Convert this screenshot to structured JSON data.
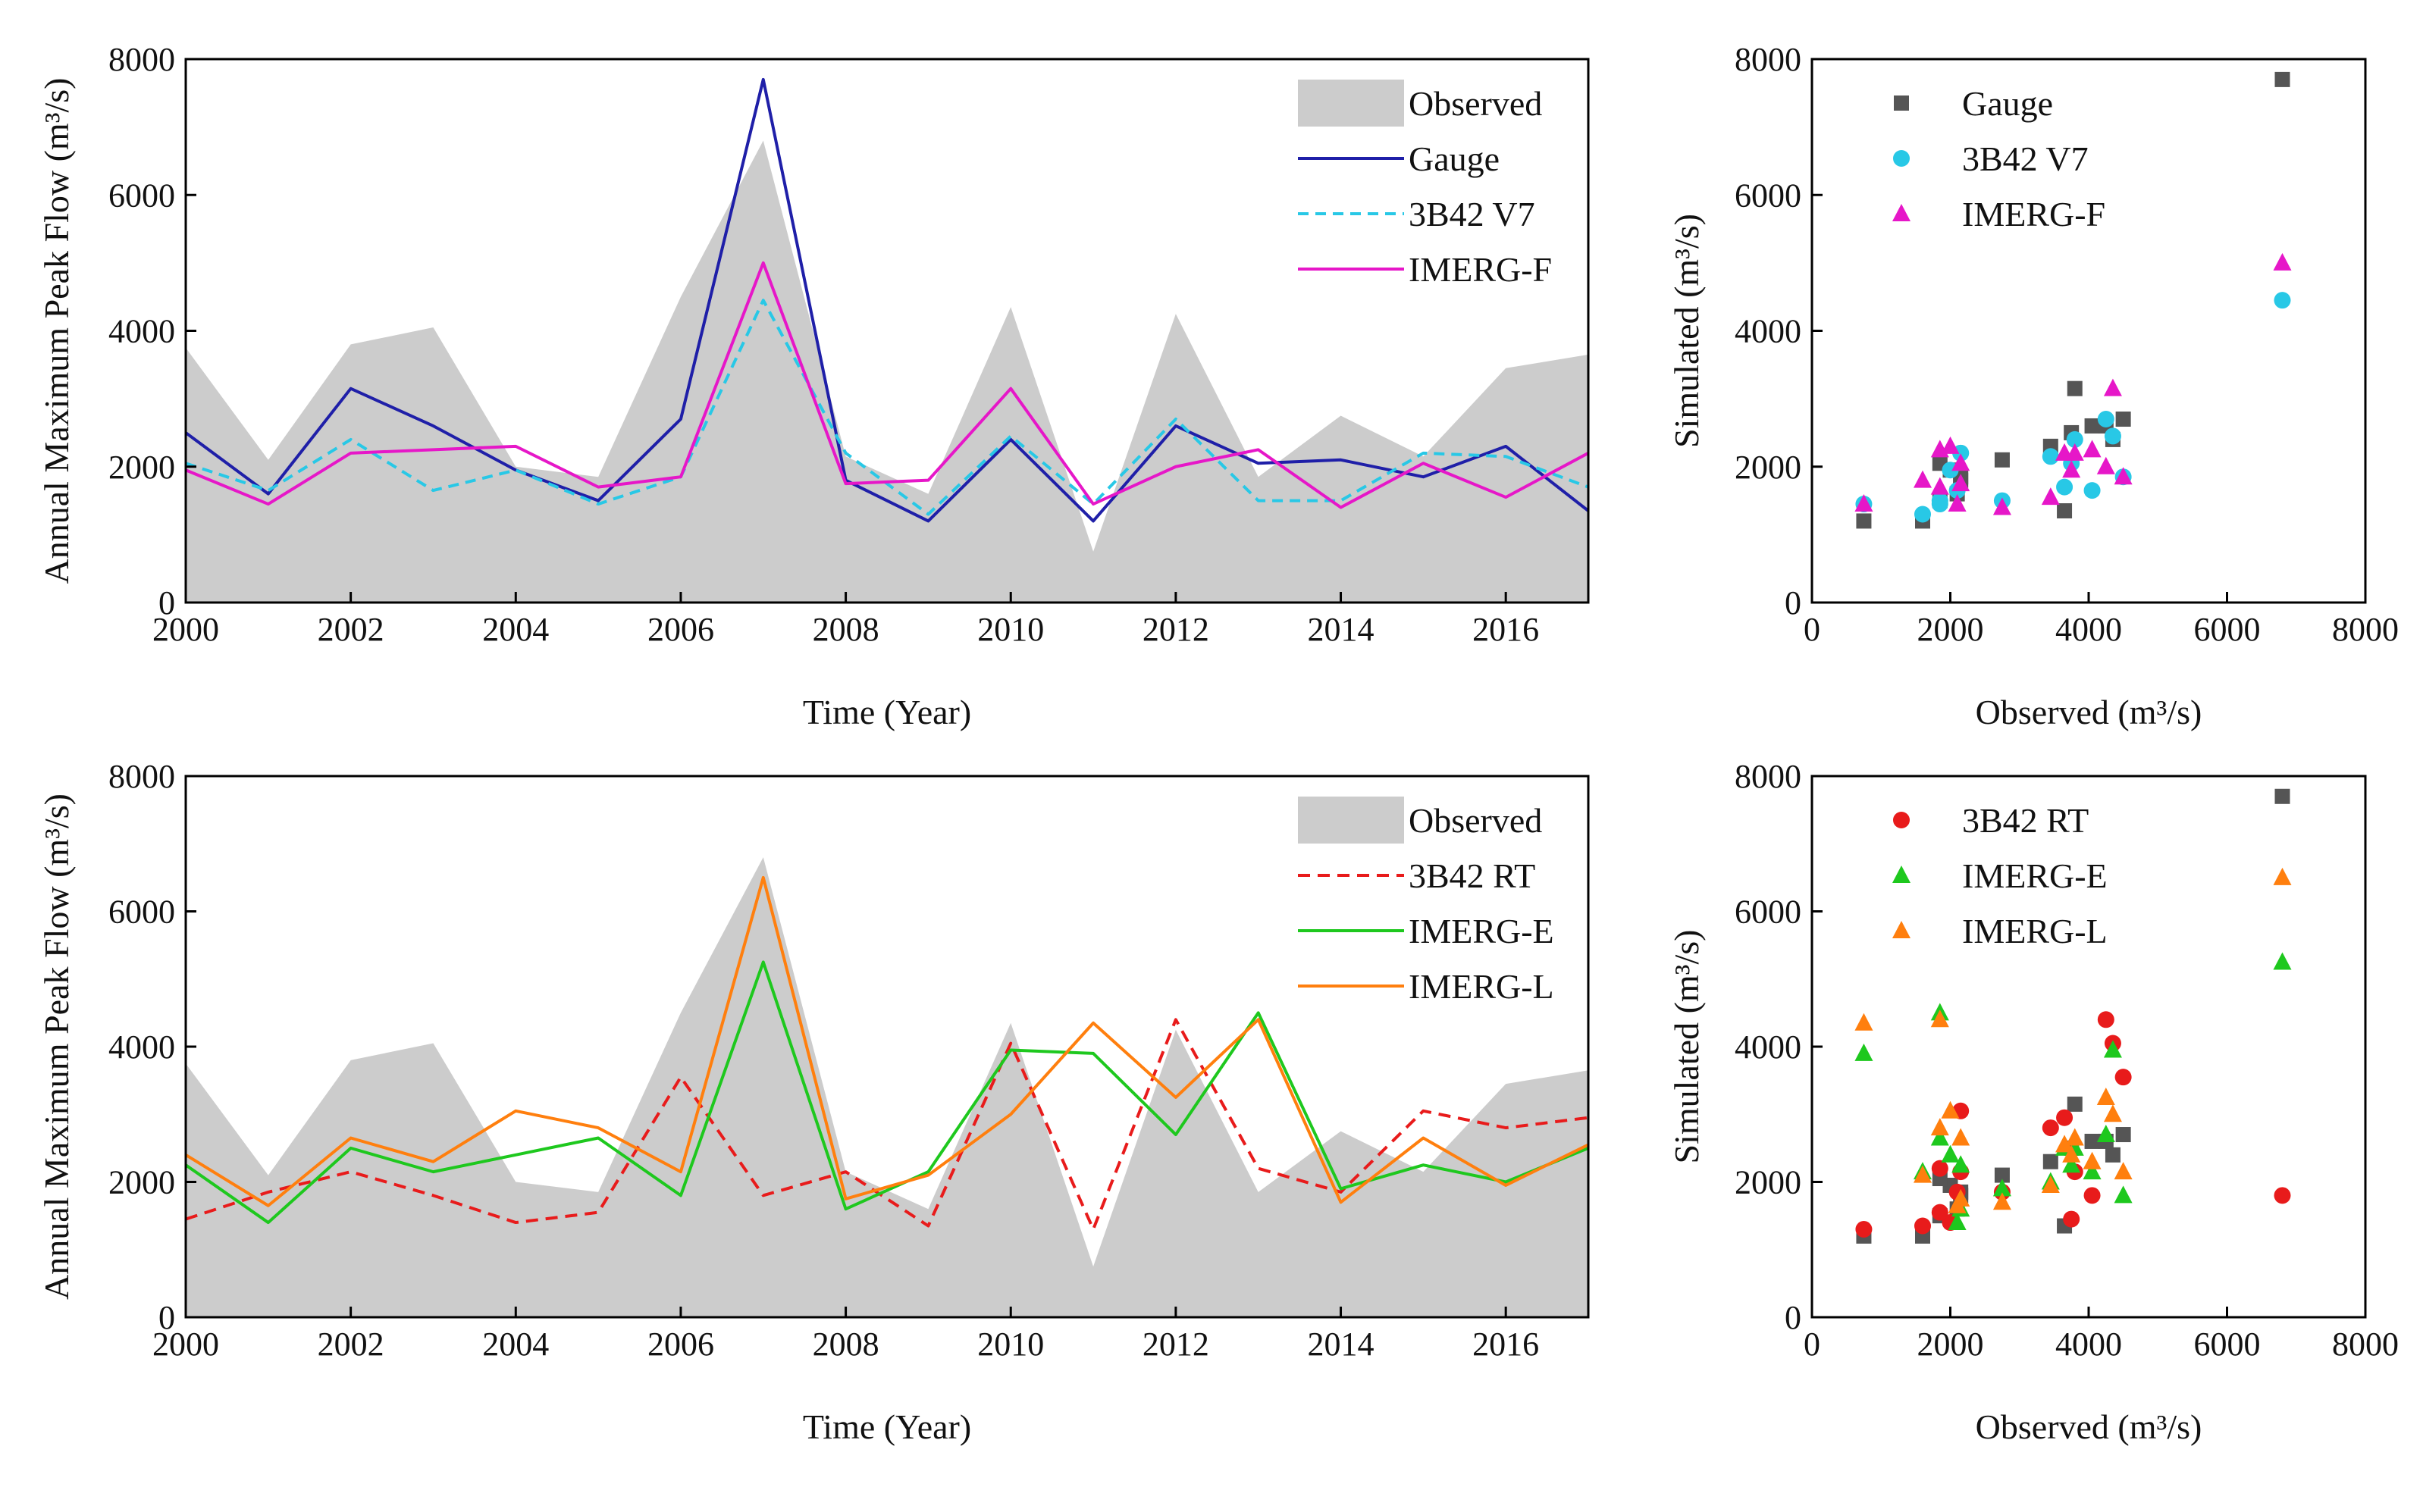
{
  "chart_data": [
    {
      "id": "ts_top",
      "type": "line",
      "title": "",
      "xlabel": "Time (Year)",
      "ylabel": "Annual Maximum Peak Flow (m³/s)",
      "xlim": [
        2000,
        2017
      ],
      "ylim": [
        0,
        8000
      ],
      "xticks": [
        2000,
        2002,
        2004,
        2006,
        2008,
        2010,
        2012,
        2014,
        2016
      ],
      "yticks": [
        0,
        2000,
        4000,
        6000,
        8000
      ],
      "legend_position": "top-right",
      "x": [
        2000,
        2001,
        2002,
        2003,
        2004,
        2005,
        2006,
        2007,
        2008,
        2009,
        2010,
        2011,
        2012,
        2013,
        2014,
        2015,
        2016,
        2017
      ],
      "observed": {
        "name": "Observed",
        "color": "#cccccc",
        "values": [
          3750,
          2100,
          3800,
          4050,
          2000,
          1850,
          4500,
          6800,
          2150,
          1600,
          4350,
          750,
          4250,
          1850,
          2750,
          2150,
          3450,
          3650
        ]
      },
      "series": [
        {
          "name": "Gauge",
          "color": "#1f1fa8",
          "dash": "",
          "values": [
            2500,
            1600,
            3150,
            2600,
            1950,
            1500,
            2700,
            7700,
            1800,
            1200,
            2400,
            1200,
            2600,
            2050,
            2100,
            1850,
            2300,
            1350
          ]
        },
        {
          "name": "3B42 V7",
          "color": "#28c8e6",
          "dash": "14 9",
          "values": [
            2050,
            1650,
            2400,
            1650,
            1950,
            1450,
            1850,
            4450,
            2200,
            1300,
            2450,
            1450,
            2700,
            1500,
            1500,
            2200,
            2150,
            1700
          ]
        },
        {
          "name": "IMERG-F",
          "color": "#e617c8",
          "dash": "",
          "values": [
            1950,
            1450,
            2200,
            2250,
            2300,
            1700,
            1850,
            5000,
            1750,
            1800,
            3150,
            1450,
            2000,
            2250,
            1400,
            2050,
            1550,
            2200
          ]
        }
      ]
    },
    {
      "id": "scatter_top",
      "type": "scatter",
      "title": "",
      "xlabel": "Observed (m³/s)",
      "ylabel": "Simulated (m³/s)",
      "xlim": [
        0,
        8000
      ],
      "ylim": [
        0,
        8000
      ],
      "xticks": [
        0,
        2000,
        4000,
        6000,
        8000
      ],
      "yticks": [
        0,
        2000,
        4000,
        6000,
        8000
      ],
      "legend_position": "top-left",
      "observed_x": [
        3750,
        2100,
        3800,
        4050,
        2000,
        1850,
        4500,
        6800,
        2150,
        1600,
        4350,
        750,
        4250,
        1850,
        2750,
        2150,
        3450,
        3650
      ],
      "series": [
        {
          "name": "Gauge",
          "color": "#555555",
          "marker": "square",
          "values": [
            2500,
            1600,
            3150,
            2600,
            1950,
            1500,
            2700,
            7700,
            1800,
            1200,
            2400,
            1200,
            2600,
            2050,
            2100,
            1850,
            2300,
            1350
          ]
        },
        {
          "name": "3B42 V7",
          "color": "#28c8e6",
          "marker": "circle",
          "values": [
            2050,
            1650,
            2400,
            1650,
            1950,
            1450,
            1850,
            4450,
            2200,
            1300,
            2450,
            1450,
            2700,
            1500,
            1500,
            2200,
            2150,
            1700
          ]
        },
        {
          "name": "IMERG-F",
          "color": "#e617c8",
          "marker": "triangle",
          "values": [
            1950,
            1450,
            2200,
            2250,
            2300,
            1700,
            1850,
            5000,
            1750,
            1800,
            3150,
            1450,
            2000,
            2250,
            1400,
            2050,
            1550,
            2200
          ]
        }
      ]
    },
    {
      "id": "ts_bottom",
      "type": "line",
      "title": "",
      "xlabel": "Time (Year)",
      "ylabel": "Annual Maximum Peak Flow (m³/s)",
      "xlim": [
        2000,
        2017
      ],
      "ylim": [
        0,
        8000
      ],
      "xticks": [
        2000,
        2002,
        2004,
        2006,
        2008,
        2010,
        2012,
        2014,
        2016
      ],
      "yticks": [
        0,
        2000,
        4000,
        6000,
        8000
      ],
      "legend_position": "top-right",
      "x": [
        2000,
        2001,
        2002,
        2003,
        2004,
        2005,
        2006,
        2007,
        2008,
        2009,
        2010,
        2011,
        2012,
        2013,
        2014,
        2015,
        2016,
        2017
      ],
      "observed": {
        "name": "Observed",
        "color": "#cccccc",
        "values": [
          3750,
          2100,
          3800,
          4050,
          2000,
          1850,
          4500,
          6800,
          2150,
          1600,
          4350,
          750,
          4250,
          1850,
          2750,
          2150,
          3450,
          3650
        ]
      },
      "series": [
        {
          "name": "3B42 RT",
          "color": "#e81b1b",
          "dash": "16 10",
          "values": [
            1450,
            1850,
            2150,
            1800,
            1400,
            1550,
            3550,
            1800,
            2150,
            1350,
            4050,
            1300,
            4400,
            2200,
            1850,
            3050,
            2800,
            2950
          ]
        },
        {
          "name": "IMERG-E",
          "color": "#1ec81e",
          "dash": "",
          "values": [
            2250,
            1400,
            2500,
            2150,
            2400,
            2650,
            1800,
            5250,
            1600,
            2150,
            3950,
            3900,
            2700,
            4500,
            1900,
            2250,
            2000,
            2500
          ]
        },
        {
          "name": "IMERG-L",
          "color": "#ff7f0e",
          "dash": "",
          "values": [
            2400,
            1650,
            2650,
            2300,
            3050,
            2800,
            2150,
            6500,
            1750,
            2100,
            3000,
            4350,
            3250,
            4400,
            1700,
            2650,
            1950,
            2550
          ]
        }
      ]
    },
    {
      "id": "scatter_bottom",
      "type": "scatter",
      "title": "",
      "xlabel": "Observed (m³/s)",
      "ylabel": "Simulated (m³/s)",
      "xlim": [
        0,
        8000
      ],
      "ylim": [
        0,
        8000
      ],
      "xticks": [
        0,
        2000,
        4000,
        6000,
        8000
      ],
      "yticks": [
        0,
        2000,
        4000,
        6000,
        8000
      ],
      "legend_position": "top-left",
      "observed_x": [
        3750,
        2100,
        3800,
        4050,
        2000,
        1850,
        4500,
        6800,
        2150,
        1600,
        4350,
        750,
        4250,
        1850,
        2750,
        2150,
        3450,
        3650
      ],
      "series": [
        {
          "name": "Gauge",
          "color": "#555555",
          "marker": "square",
          "show_in_legend": false,
          "values": [
            2500,
            1600,
            3150,
            2600,
            1950,
            1500,
            2700,
            7700,
            1800,
            1200,
            2400,
            1200,
            2600,
            2050,
            2100,
            1850,
            2300,
            1350
          ]
        },
        {
          "name": "3B42 RT",
          "color": "#e81b1b",
          "marker": "circle",
          "values": [
            1450,
            1850,
            2150,
            1800,
            1400,
            1550,
            3550,
            1800,
            2150,
            1350,
            4050,
            1300,
            4400,
            2200,
            1850,
            3050,
            2800,
            2950
          ]
        },
        {
          "name": "IMERG-E",
          "color": "#1ec81e",
          "marker": "triangle",
          "values": [
            2250,
            1400,
            2500,
            2150,
            2400,
            2650,
            1800,
            5250,
            1600,
            2150,
            3950,
            3900,
            2700,
            4500,
            1900,
            2250,
            2000,
            2500
          ]
        },
        {
          "name": "IMERG-L",
          "color": "#ff7f0e",
          "marker": "triangle",
          "values": [
            2400,
            1650,
            2650,
            2300,
            3050,
            2800,
            2150,
            6500,
            1750,
            2100,
            3000,
            4350,
            3250,
            4400,
            1700,
            2650,
            1950,
            2550
          ]
        }
      ]
    }
  ]
}
